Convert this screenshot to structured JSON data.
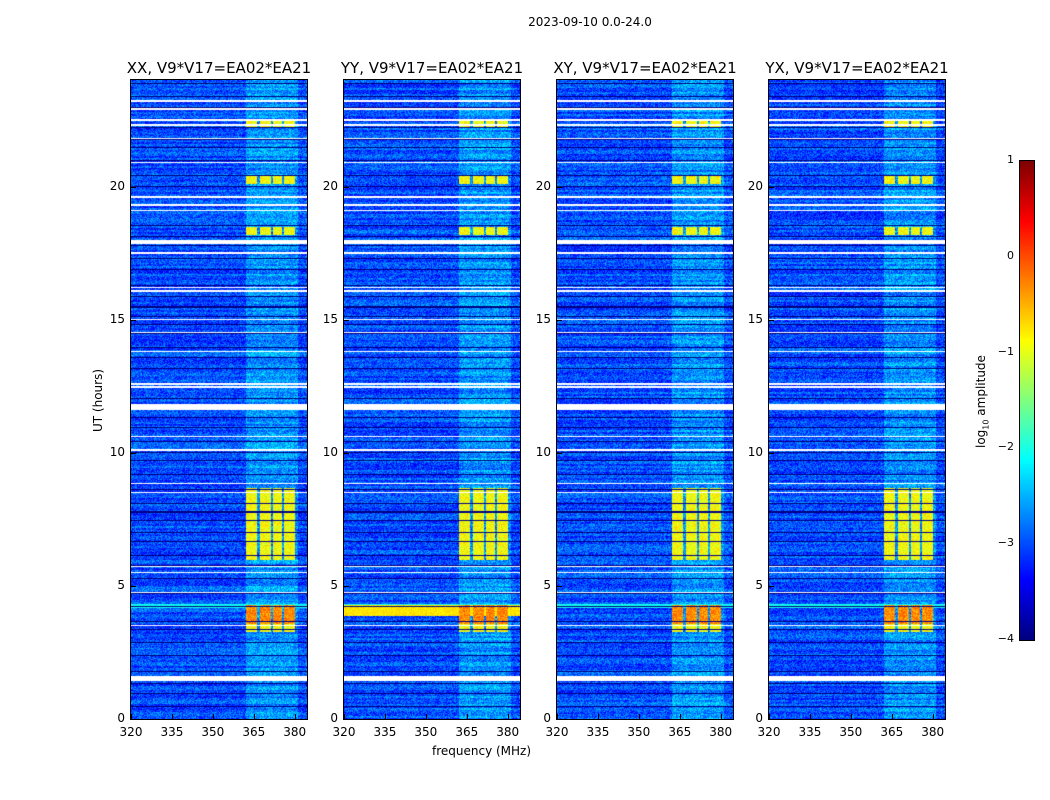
{
  "suptitle": "2023-09-10 0.0-24.0",
  "chart_data": {
    "type": "heatmap",
    "title": "2023-09-10 0.0-24.0",
    "xlabel": "frequency (MHz)",
    "ylabel": "UT (hours)",
    "xlim": [
      320,
      384.5
    ],
    "ylim": [
      0,
      24
    ],
    "xticks": [
      "320",
      "335",
      "350",
      "365",
      "380"
    ],
    "xtick_values": [
      320,
      335,
      350,
      365,
      380
    ],
    "yticks": [
      "0",
      "5",
      "10",
      "15",
      "20"
    ],
    "ytick_values": [
      0,
      5,
      10,
      15,
      20
    ],
    "panels": [
      {
        "title": "XX, V9*V17=EA02*EA21",
        "strong_rfi": true
      },
      {
        "title": "YY, V9*V17=EA02*EA21",
        "strong_rfi": true
      },
      {
        "title": "XY, V9*V17=EA02*EA21",
        "strong_rfi": true
      },
      {
        "title": "YX, V9*V17=EA02*EA21",
        "strong_rfi": true
      }
    ],
    "colorbar": {
      "label": "log",
      "label_sub": "10",
      "label_suffix": " amplitude",
      "range": [
        -4,
        1
      ],
      "ticks": [
        "1",
        "0",
        "−1",
        "−2",
        "−3",
        "−4"
      ],
      "tick_values": [
        1,
        0,
        -1,
        -2,
        -3,
        -4
      ],
      "colormap": "jet"
    },
    "background_log_amplitude": -3.0,
    "rfi_channels_mhz": [
      [
        362,
        366
      ],
      [
        367,
        371
      ],
      [
        372,
        375
      ],
      [
        376,
        380
      ]
    ],
    "rfi_bright_hours": [
      [
        3.3,
        4.3
      ],
      [
        6.0,
        8.7
      ],
      [
        18.2,
        18.5
      ],
      [
        20.1,
        20.4
      ],
      [
        22.2,
        22.5
      ]
    ],
    "flagged_hours": [
      [
        1.45,
        1.62
      ],
      [
        3.5,
        3.55
      ],
      [
        4.75,
        4.8
      ],
      [
        5.5,
        5.55
      ],
      [
        5.72,
        5.76
      ],
      [
        8.5,
        8.55
      ],
      [
        8.85,
        8.9
      ],
      [
        10.1,
        10.15
      ],
      [
        10.6,
        10.65
      ],
      [
        11.62,
        11.85
      ],
      [
        12.45,
        12.52
      ],
      [
        12.58,
        12.62
      ],
      [
        13.8,
        13.85
      ],
      [
        14.5,
        14.55
      ],
      [
        15.0,
        15.05
      ],
      [
        16.05,
        16.12
      ],
      [
        16.2,
        16.25
      ],
      [
        17.5,
        17.55
      ],
      [
        17.85,
        18.0
      ],
      [
        19.1,
        19.15
      ],
      [
        19.3,
        19.38
      ],
      [
        19.6,
        19.65
      ],
      [
        20.9,
        20.95
      ],
      [
        21.8,
        21.85
      ],
      [
        22.3,
        22.35
      ],
      [
        22.48,
        22.55
      ],
      [
        22.9,
        22.95
      ],
      [
        23.2,
        23.25
      ]
    ]
  }
}
